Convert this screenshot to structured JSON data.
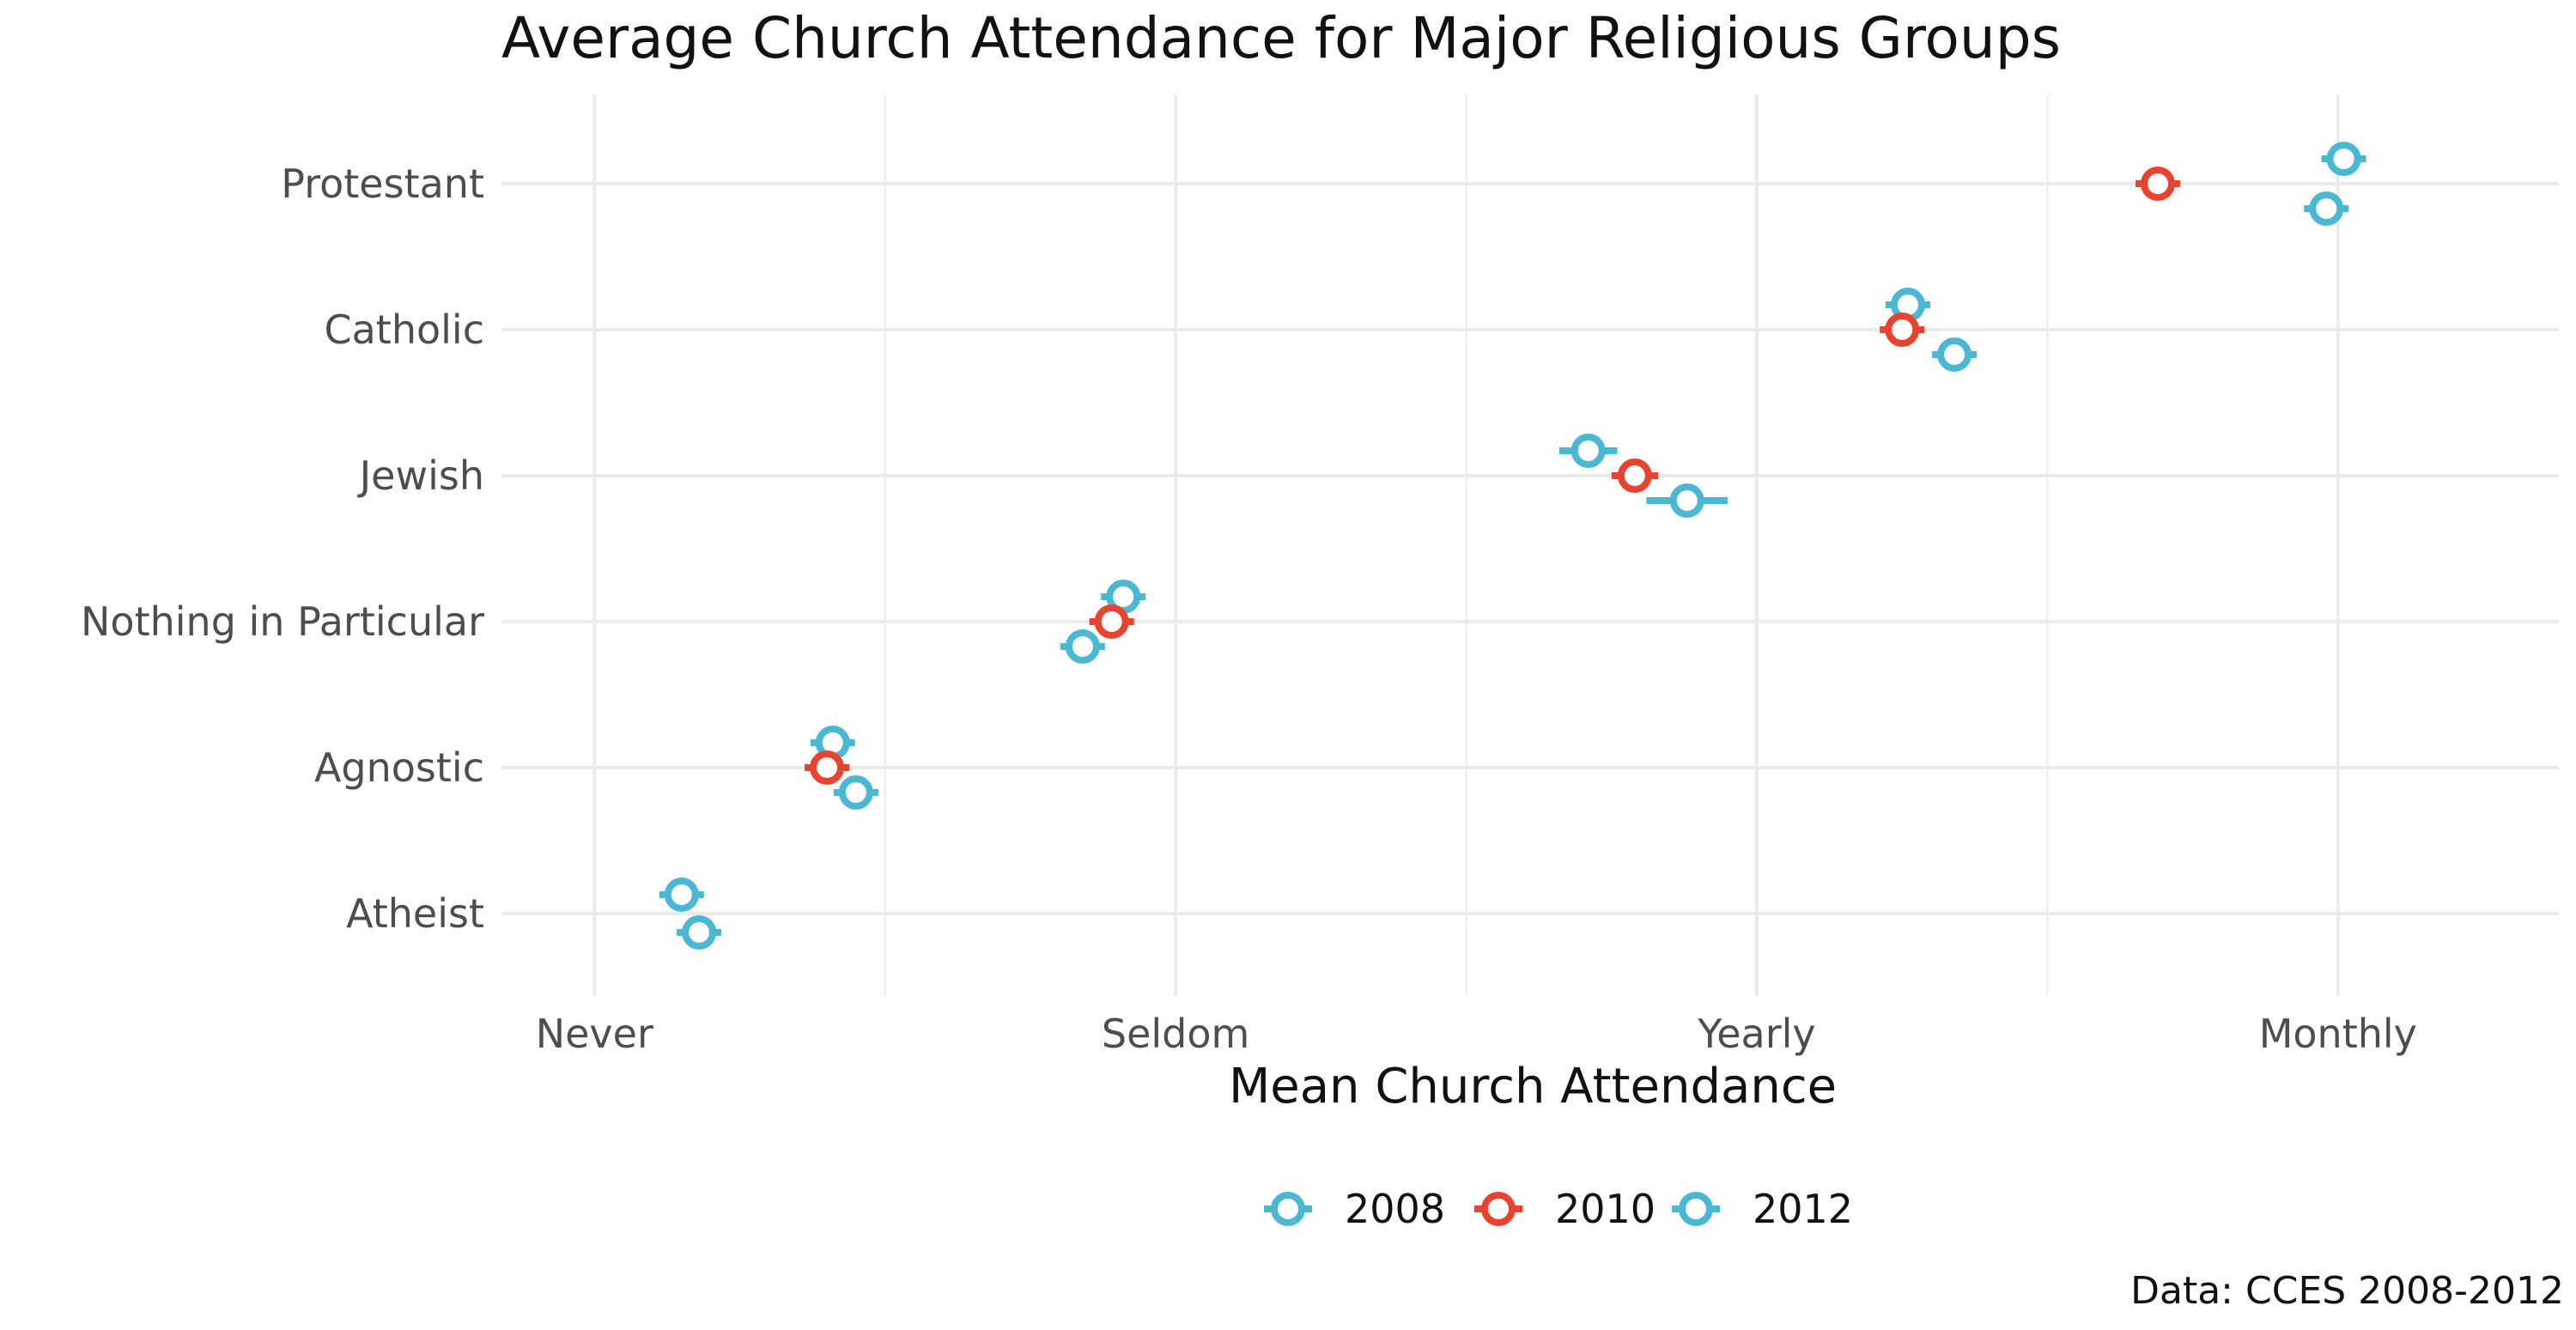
{
  "chart_data": {
    "type": "scatter",
    "title": "Average Church Attendance for Major Religious Groups",
    "xlabel": "Mean Church Attendance",
    "ylabel": "",
    "caption": "Data: CCES 2008-2012",
    "x_ticks": [
      "Never",
      "Seldom",
      "Yearly",
      "Monthly"
    ],
    "x_tick_values": [
      1,
      2,
      3,
      4
    ],
    "xlim": [
      0.84,
      4.38
    ],
    "categories": [
      "Atheist",
      "Agnostic",
      "Nothing in Particular",
      "Jewish",
      "Catholic",
      "Protestant"
    ],
    "grid": true,
    "legend_position": "bottom",
    "series": [
      {
        "name": "2008",
        "color": "#4ab8d4",
        "points": [
          {
            "category": "Atheist",
            "x": 1.15,
            "err": 0.01
          },
          {
            "category": "Agnostic",
            "x": 1.41,
            "err": 0.01
          },
          {
            "category": "Nothing in Particular",
            "x": 1.91,
            "err": 0.01
          },
          {
            "category": "Jewish",
            "x": 2.71,
            "err": 0.05
          },
          {
            "category": "Catholic",
            "x": 3.26,
            "err": 0.01
          },
          {
            "category": "Protestant",
            "x": 4.01,
            "err": 0.01
          }
        ]
      },
      {
        "name": "2010",
        "color": "#e8432e",
        "points": [
          {
            "category": "Agnostic",
            "x": 1.4,
            "err": 0.01
          },
          {
            "category": "Nothing in Particular",
            "x": 1.89,
            "err": 0.01
          },
          {
            "category": "Jewish",
            "x": 2.79,
            "err": 0.04
          },
          {
            "category": "Catholic",
            "x": 3.25,
            "err": 0.01
          },
          {
            "category": "Protestant",
            "x": 3.69,
            "err": 0.01
          }
        ]
      },
      {
        "name": "2012",
        "color": "#4ab8d4",
        "points": [
          {
            "category": "Atheist",
            "x": 1.18,
            "err": 0.01
          },
          {
            "category": "Agnostic",
            "x": 1.45,
            "err": 0.01
          },
          {
            "category": "Nothing in Particular",
            "x": 1.84,
            "err": 0.01
          },
          {
            "category": "Jewish",
            "x": 2.88,
            "err": 0.07
          },
          {
            "category": "Catholic",
            "x": 3.34,
            "err": 0.01
          },
          {
            "category": "Protestant",
            "x": 3.98,
            "err": 0.01
          }
        ]
      }
    ]
  }
}
